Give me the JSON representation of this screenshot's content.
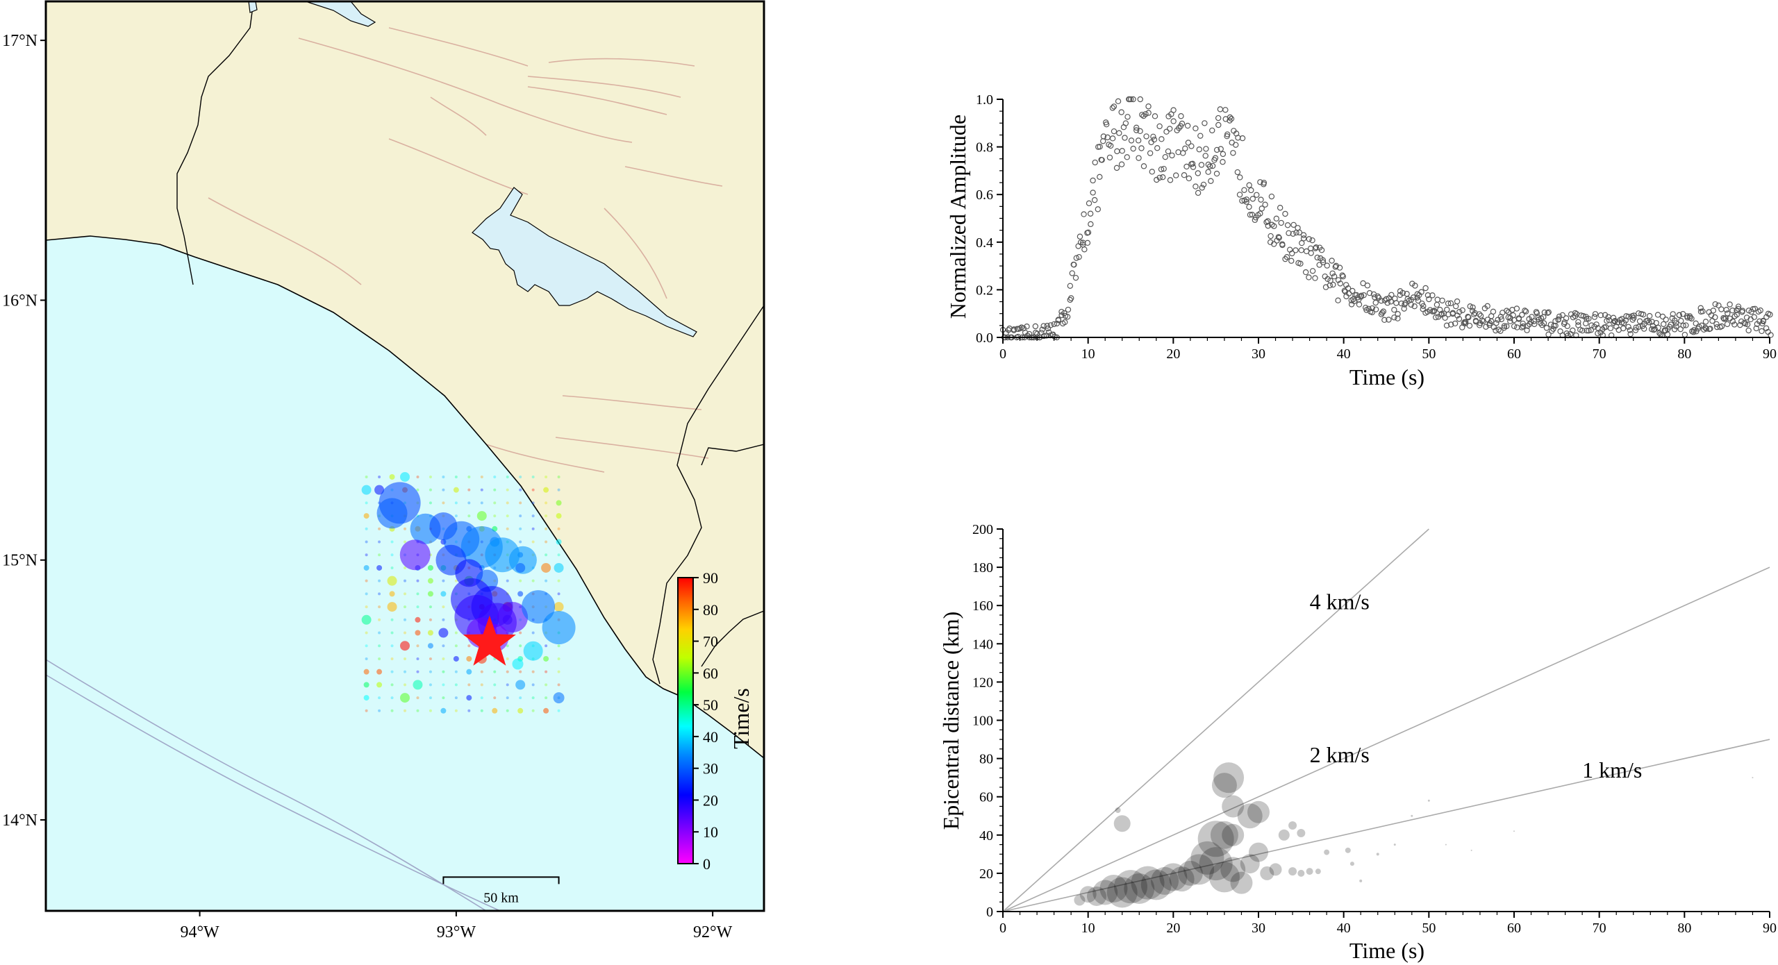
{
  "colors": {
    "land": "#f5f2d4",
    "ocean": "#d8fbfc",
    "coast": "#000000",
    "fault": "#d9b0a0",
    "lake": "#d8f0f8",
    "star": "#ff1a1a"
  },
  "map": {
    "lon_range": [
      -94.6,
      -91.8
    ],
    "lat_range": [
      13.65,
      17.15
    ],
    "lon_ticks": [
      {
        "value": -94,
        "label": "94°W"
      },
      {
        "value": -93,
        "label": "93°W"
      },
      {
        "value": -92,
        "label": "92°W"
      }
    ],
    "lat_ticks": [
      {
        "value": 14,
        "label": "14°N"
      },
      {
        "value": 15,
        "label": "15°N"
      },
      {
        "value": 16,
        "label": "16°N"
      },
      {
        "value": 17,
        "label": "17°N"
      }
    ],
    "scale_bar_label": "50 km",
    "scale_bar_lon": [
      -93.05,
      -92.6
    ],
    "scale_bar_lat": 13.78,
    "epicenter": {
      "lon": -92.87,
      "lat": 14.68
    },
    "colorbar": {
      "label": "Time/s",
      "range": [
        0,
        90
      ],
      "ticks": [
        "0",
        "10",
        "20",
        "30",
        "40",
        "50",
        "60",
        "70",
        "80",
        "90"
      ]
    },
    "grid_sources": {
      "lon_range": [
        -93.35,
        -92.6
      ],
      "lat_range": [
        14.42,
        15.32
      ],
      "step_lon": 0.05,
      "step_lat": 0.05
    },
    "sources": [
      {
        "lon": -93.22,
        "lat": 15.22,
        "t": 28,
        "r": 30
      },
      {
        "lon": -93.25,
        "lat": 15.18,
        "t": 30,
        "r": 22
      },
      {
        "lon": -93.12,
        "lat": 15.12,
        "t": 32,
        "r": 22
      },
      {
        "lon": -93.05,
        "lat": 15.13,
        "t": 28,
        "r": 20
      },
      {
        "lon": -92.98,
        "lat": 15.08,
        "t": 30,
        "r": 26
      },
      {
        "lon": -92.9,
        "lat": 15.05,
        "t": 33,
        "r": 30
      },
      {
        "lon": -92.82,
        "lat": 15.02,
        "t": 35,
        "r": 25
      },
      {
        "lon": -92.74,
        "lat": 15.0,
        "t": 35,
        "r": 20
      },
      {
        "lon": -93.16,
        "lat": 15.02,
        "t": 14,
        "r": 22
      },
      {
        "lon": -93.02,
        "lat": 15.0,
        "t": 26,
        "r": 22
      },
      {
        "lon": -92.95,
        "lat": 14.95,
        "t": 22,
        "r": 20
      },
      {
        "lon": -92.88,
        "lat": 14.92,
        "t": 30,
        "r": 16
      },
      {
        "lon": -92.94,
        "lat": 14.85,
        "t": 20,
        "r": 30
      },
      {
        "lon": -92.86,
        "lat": 14.82,
        "t": 21,
        "r": 30
      },
      {
        "lon": -92.92,
        "lat": 14.78,
        "t": 18,
        "r": 32
      },
      {
        "lon": -92.84,
        "lat": 14.76,
        "t": 17,
        "r": 28
      },
      {
        "lon": -92.78,
        "lat": 14.78,
        "t": 15,
        "r": 22
      },
      {
        "lon": -92.9,
        "lat": 14.72,
        "t": 13,
        "r": 22
      },
      {
        "lon": -92.85,
        "lat": 14.7,
        "t": 12,
        "r": 20
      },
      {
        "lon": -92.68,
        "lat": 14.82,
        "t": 32,
        "r": 24
      },
      {
        "lon": -92.6,
        "lat": 14.74,
        "t": 34,
        "r": 24
      },
      {
        "lon": -92.7,
        "lat": 14.65,
        "t": 40,
        "r": 14
      },
      {
        "lon": -92.76,
        "lat": 14.6,
        "t": 42,
        "r": 8
      },
      {
        "lon": -92.6,
        "lat": 14.47,
        "t": 32,
        "r": 8
      }
    ]
  },
  "amplitude_plot": {
    "type": "scatter",
    "xlabel": "Time (s)",
    "ylabel": "Normalized Amplitude",
    "xlim": [
      0,
      90
    ],
    "ylim": [
      0,
      1.0
    ],
    "xticks": [
      0,
      10,
      20,
      30,
      40,
      50,
      60,
      70,
      80,
      90
    ],
    "yticks": [
      0.0,
      0.2,
      0.4,
      0.6,
      0.8,
      1.0
    ],
    "ytick_labels": [
      "0.0",
      "0.2",
      "0.4",
      "0.6",
      "0.8",
      "1.0"
    ],
    "envelope": [
      [
        0,
        0.0
      ],
      [
        3,
        0.01
      ],
      [
        5,
        0.02
      ],
      [
        6,
        0.04
      ],
      [
        7,
        0.08
      ],
      [
        8,
        0.22
      ],
      [
        9,
        0.36
      ],
      [
        10,
        0.55
      ],
      [
        11,
        0.68
      ],
      [
        12,
        0.8
      ],
      [
        13,
        0.86
      ],
      [
        14,
        0.9
      ],
      [
        15,
        0.96
      ],
      [
        16,
        0.92
      ],
      [
        17,
        0.88
      ],
      [
        18,
        0.82
      ],
      [
        19,
        0.8
      ],
      [
        20,
        0.84
      ],
      [
        21,
        0.8
      ],
      [
        22,
        0.78
      ],
      [
        23,
        0.74
      ],
      [
        24,
        0.8
      ],
      [
        25,
        0.86
      ],
      [
        26,
        0.82
      ],
      [
        27,
        0.78
      ],
      [
        28,
        0.72
      ],
      [
        29,
        0.66
      ],
      [
        30,
        0.58
      ],
      [
        31,
        0.52
      ],
      [
        32,
        0.48
      ],
      [
        33,
        0.44
      ],
      [
        34,
        0.4
      ],
      [
        35,
        0.37
      ],
      [
        36,
        0.34
      ],
      [
        37,
        0.31
      ],
      [
        38,
        0.28
      ],
      [
        39,
        0.24
      ],
      [
        40,
        0.22
      ],
      [
        41,
        0.2
      ],
      [
        42,
        0.18
      ],
      [
        43,
        0.16
      ],
      [
        44,
        0.14
      ],
      [
        45,
        0.13
      ],
      [
        46,
        0.14
      ],
      [
        47,
        0.16
      ],
      [
        48,
        0.18
      ],
      [
        49,
        0.17
      ],
      [
        50,
        0.14
      ],
      [
        51,
        0.12
      ],
      [
        52,
        0.11
      ],
      [
        54,
        0.1
      ],
      [
        56,
        0.09
      ],
      [
        58,
        0.08
      ],
      [
        60,
        0.08
      ],
      [
        62,
        0.07
      ],
      [
        65,
        0.06
      ],
      [
        70,
        0.06
      ],
      [
        75,
        0.06
      ],
      [
        80,
        0.06
      ],
      [
        82,
        0.08
      ],
      [
        84,
        0.1
      ],
      [
        86,
        0.1
      ],
      [
        88,
        0.08
      ],
      [
        90,
        0.06
      ]
    ]
  },
  "distance_plot": {
    "type": "scatter",
    "xlabel": "Time (s)",
    "ylabel": "Epicentral distance (km)",
    "xlim": [
      0,
      90
    ],
    "ylim": [
      0,
      200
    ],
    "xticks": [
      0,
      10,
      20,
      30,
      40,
      50,
      60,
      70,
      80,
      90
    ],
    "yticks": [
      0,
      20,
      40,
      60,
      80,
      100,
      120,
      140,
      160,
      180,
      200
    ],
    "velocity_lines": [
      {
        "label": "4 km/s",
        "v": 4,
        "label_x": 36,
        "label_y": 158
      },
      {
        "label": "2 km/s",
        "v": 2,
        "label_x": 36,
        "label_y": 78
      },
      {
        "label": "1 km/s",
        "v": 1,
        "label_x": 68,
        "label_y": 70
      }
    ],
    "bubbles": [
      {
        "t": 14,
        "d": 46,
        "r": 12
      },
      {
        "t": 13.5,
        "d": 53,
        "r": 4
      },
      {
        "t": 9,
        "d": 6,
        "r": 8
      },
      {
        "t": 10,
        "d": 9,
        "r": 12
      },
      {
        "t": 11,
        "d": 8,
        "r": 14
      },
      {
        "t": 12,
        "d": 10,
        "r": 18
      },
      {
        "t": 13,
        "d": 12,
        "r": 20
      },
      {
        "t": 14,
        "d": 10,
        "r": 22
      },
      {
        "t": 15,
        "d": 13,
        "r": 24
      },
      {
        "t": 16,
        "d": 12,
        "r": 22
      },
      {
        "t": 17,
        "d": 15,
        "r": 24
      },
      {
        "t": 18,
        "d": 14,
        "r": 22
      },
      {
        "t": 19,
        "d": 16,
        "r": 20
      },
      {
        "t": 20,
        "d": 18,
        "r": 20
      },
      {
        "t": 21,
        "d": 17,
        "r": 18
      },
      {
        "t": 22,
        "d": 20,
        "r": 18
      },
      {
        "t": 23,
        "d": 22,
        "r": 22
      },
      {
        "t": 24,
        "d": 28,
        "r": 24
      },
      {
        "t": 25,
        "d": 38,
        "r": 26
      },
      {
        "t": 26,
        "d": 40,
        "r": 20
      },
      {
        "t": 25,
        "d": 25,
        "r": 24
      },
      {
        "t": 26,
        "d": 18,
        "r": 22
      },
      {
        "t": 27,
        "d": 22,
        "r": 18
      },
      {
        "t": 27,
        "d": 40,
        "r": 16
      },
      {
        "t": 26.5,
        "d": 70,
        "r": 22
      },
      {
        "t": 26,
        "d": 66,
        "r": 18
      },
      {
        "t": 27,
        "d": 55,
        "r": 16
      },
      {
        "t": 29,
        "d": 50,
        "r": 18
      },
      {
        "t": 30,
        "d": 52,
        "r": 16
      },
      {
        "t": 29,
        "d": 25,
        "r": 14
      },
      {
        "t": 30,
        "d": 31,
        "r": 14
      },
      {
        "t": 28,
        "d": 15,
        "r": 16
      },
      {
        "t": 31,
        "d": 20,
        "r": 10
      },
      {
        "t": 32,
        "d": 22,
        "r": 9
      },
      {
        "t": 33,
        "d": 40,
        "r": 8
      },
      {
        "t": 34,
        "d": 45,
        "r": 6
      },
      {
        "t": 35,
        "d": 41,
        "r": 6
      },
      {
        "t": 34,
        "d": 21,
        "r": 6
      },
      {
        "t": 35,
        "d": 20,
        "r": 5
      },
      {
        "t": 36,
        "d": 21,
        "r": 5
      },
      {
        "t": 37,
        "d": 21,
        "r": 4
      },
      {
        "t": 38,
        "d": 31,
        "r": 4
      },
      {
        "t": 40.5,
        "d": 32,
        "r": 4
      },
      {
        "t": 41,
        "d": 25,
        "r": 3
      },
      {
        "t": 42,
        "d": 16,
        "r": 2
      },
      {
        "t": 44,
        "d": 30,
        "r": 2
      },
      {
        "t": 46,
        "d": 35,
        "r": 1.5
      },
      {
        "t": 48,
        "d": 50,
        "r": 1.5
      },
      {
        "t": 50,
        "d": 58,
        "r": 1.5
      },
      {
        "t": 52,
        "d": 35,
        "r": 1
      },
      {
        "t": 55,
        "d": 32,
        "r": 1
      },
      {
        "t": 60,
        "d": 42,
        "r": 1
      },
      {
        "t": 88,
        "d": 70,
        "r": 1
      }
    ]
  }
}
